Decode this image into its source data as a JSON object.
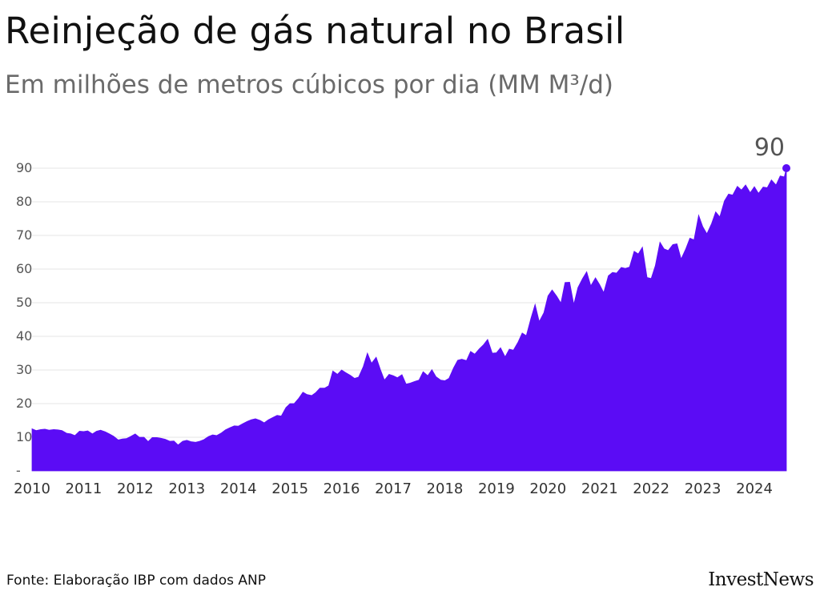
{
  "header": {
    "title": "Reinjeção de gás natural no Brasil",
    "subtitle": "Em milhões de metros cúbicos por dia (MM M³/d)"
  },
  "footer": {
    "source": "Fonte: Elaboração IBP com dados ANP",
    "brand": "InvestNews"
  },
  "colors": {
    "area": "#5b0cf5",
    "grid": "#e6e6e6",
    "text": "#555555"
  },
  "chart_data": {
    "type": "area",
    "title": "Reinjeção de gás natural no Brasil",
    "ylabel": "MM M³/d",
    "ylim": [
      0,
      90
    ],
    "y_ticks": [
      {
        "value": 0,
        "label": "-"
      },
      {
        "value": 10,
        "label": "10"
      },
      {
        "value": 20,
        "label": "20"
      },
      {
        "value": 30,
        "label": "30"
      },
      {
        "value": 40,
        "label": "40"
      },
      {
        "value": 50,
        "label": "50"
      },
      {
        "value": 60,
        "label": "60"
      },
      {
        "value": 70,
        "label": "70"
      },
      {
        "value": 80,
        "label": "80"
      },
      {
        "value": 90,
        "label": "90"
      }
    ],
    "x_ticks": [
      "2010",
      "2011",
      "2012",
      "2013",
      "2014",
      "2015",
      "2016",
      "2017",
      "2018",
      "2019",
      "2020",
      "2021",
      "2022",
      "2023",
      "2024"
    ],
    "x_start": 2010.0,
    "last_label": "90",
    "points": [
      [
        2010.0,
        12.5
      ],
      [
        2010.08,
        12.0
      ],
      [
        2010.17,
        12.3
      ],
      [
        2010.25,
        12.4
      ],
      [
        2010.33,
        12.1
      ],
      [
        2010.42,
        12.3
      ],
      [
        2010.5,
        12.2
      ],
      [
        2010.58,
        12.0
      ],
      [
        2010.67,
        11.2
      ],
      [
        2010.75,
        11.0
      ],
      [
        2010.83,
        10.5
      ],
      [
        2010.92,
        11.8
      ],
      [
        2011.0,
        11.7
      ],
      [
        2011.08,
        11.9
      ],
      [
        2011.17,
        11.0
      ],
      [
        2011.25,
        11.8
      ],
      [
        2011.33,
        12.1
      ],
      [
        2011.42,
        11.6
      ],
      [
        2011.5,
        11.0
      ],
      [
        2011.58,
        10.3
      ],
      [
        2011.67,
        9.2
      ],
      [
        2011.75,
        9.5
      ],
      [
        2011.83,
        9.6
      ],
      [
        2011.92,
        10.3
      ],
      [
        2012.0,
        11.0
      ],
      [
        2012.08,
        10.0
      ],
      [
        2012.17,
        10.0
      ],
      [
        2012.25,
        8.7
      ],
      [
        2012.33,
        9.9
      ],
      [
        2012.42,
        9.9
      ],
      [
        2012.5,
        9.7
      ],
      [
        2012.58,
        9.4
      ],
      [
        2012.67,
        8.8
      ],
      [
        2012.75,
        8.9
      ],
      [
        2012.83,
        7.7
      ],
      [
        2012.92,
        8.8
      ],
      [
        2013.0,
        9.1
      ],
      [
        2013.08,
        8.7
      ],
      [
        2013.17,
        8.5
      ],
      [
        2013.25,
        8.8
      ],
      [
        2013.33,
        9.3
      ],
      [
        2013.42,
        10.2
      ],
      [
        2013.5,
        10.7
      ],
      [
        2013.58,
        10.5
      ],
      [
        2013.67,
        11.3
      ],
      [
        2013.75,
        12.2
      ],
      [
        2013.83,
        12.8
      ],
      [
        2013.92,
        13.4
      ],
      [
        2014.0,
        13.3
      ],
      [
        2014.08,
        14.0
      ],
      [
        2014.17,
        14.7
      ],
      [
        2014.25,
        15.2
      ],
      [
        2014.33,
        15.5
      ],
      [
        2014.42,
        15.0
      ],
      [
        2014.5,
        14.3
      ],
      [
        2014.58,
        15.2
      ],
      [
        2014.67,
        15.9
      ],
      [
        2014.75,
        16.5
      ],
      [
        2014.83,
        16.3
      ],
      [
        2014.92,
        18.8
      ],
      [
        2015.0,
        20.0
      ],
      [
        2015.08,
        20.0
      ],
      [
        2015.17,
        21.6
      ],
      [
        2015.25,
        23.4
      ],
      [
        2015.33,
        22.7
      ],
      [
        2015.42,
        22.4
      ],
      [
        2015.5,
        23.3
      ],
      [
        2015.58,
        24.6
      ],
      [
        2015.67,
        24.6
      ],
      [
        2015.75,
        25.3
      ],
      [
        2015.83,
        29.7
      ],
      [
        2015.92,
        28.7
      ],
      [
        2016.0,
        30.0
      ],
      [
        2016.08,
        29.2
      ],
      [
        2016.17,
        28.4
      ],
      [
        2016.25,
        27.5
      ],
      [
        2016.33,
        27.9
      ],
      [
        2016.42,
        31.0
      ],
      [
        2016.5,
        35.0
      ],
      [
        2016.58,
        32.0
      ],
      [
        2016.67,
        33.8
      ],
      [
        2016.75,
        30.2
      ],
      [
        2016.83,
        27.0
      ],
      [
        2016.92,
        28.7
      ],
      [
        2017.0,
        28.3
      ],
      [
        2017.08,
        27.7
      ],
      [
        2017.17,
        28.6
      ],
      [
        2017.25,
        25.8
      ],
      [
        2017.33,
        26.1
      ],
      [
        2017.42,
        26.6
      ],
      [
        2017.5,
        27.0
      ],
      [
        2017.58,
        29.5
      ],
      [
        2017.67,
        28.3
      ],
      [
        2017.75,
        30.1
      ],
      [
        2017.83,
        28.0
      ],
      [
        2017.92,
        27.0
      ],
      [
        2018.0,
        26.8
      ],
      [
        2018.08,
        27.5
      ],
      [
        2018.17,
        30.6
      ],
      [
        2018.25,
        32.9
      ],
      [
        2018.33,
        33.2
      ],
      [
        2018.42,
        32.8
      ],
      [
        2018.5,
        35.5
      ],
      [
        2018.58,
        34.7
      ],
      [
        2018.67,
        36.3
      ],
      [
        2018.75,
        37.5
      ],
      [
        2018.83,
        39.1
      ],
      [
        2018.92,
        35.0
      ],
      [
        2019.0,
        35.1
      ],
      [
        2019.08,
        36.6
      ],
      [
        2019.17,
        33.9
      ],
      [
        2019.25,
        36.2
      ],
      [
        2019.33,
        35.9
      ],
      [
        2019.42,
        38.3
      ],
      [
        2019.5,
        41.0
      ],
      [
        2019.58,
        40.2
      ],
      [
        2019.67,
        45.4
      ],
      [
        2019.75,
        49.5
      ],
      [
        2019.83,
        44.4
      ],
      [
        2019.92,
        47.0
      ],
      [
        2020.0,
        52.0
      ],
      [
        2020.08,
        53.8
      ],
      [
        2020.17,
        51.9
      ],
      [
        2020.25,
        49.9
      ],
      [
        2020.33,
        56.0
      ],
      [
        2020.42,
        56.1
      ],
      [
        2020.5,
        49.5
      ],
      [
        2020.58,
        54.5
      ],
      [
        2020.67,
        57.2
      ],
      [
        2020.75,
        59.2
      ],
      [
        2020.83,
        55.0
      ],
      [
        2020.92,
        57.4
      ],
      [
        2021.0,
        55.4
      ],
      [
        2021.08,
        53.0
      ],
      [
        2021.17,
        58.0
      ],
      [
        2021.25,
        59.0
      ],
      [
        2021.33,
        58.8
      ],
      [
        2021.42,
        60.5
      ],
      [
        2021.5,
        60.2
      ],
      [
        2021.58,
        60.6
      ],
      [
        2021.67,
        65.3
      ],
      [
        2021.75,
        64.5
      ],
      [
        2021.83,
        66.5
      ],
      [
        2021.92,
        57.5
      ],
      [
        2022.0,
        57.2
      ],
      [
        2022.08,
        61.0
      ],
      [
        2022.17,
        68.0
      ],
      [
        2022.25,
        66.0
      ],
      [
        2022.33,
        65.5
      ],
      [
        2022.42,
        67.3
      ],
      [
        2022.5,
        67.5
      ],
      [
        2022.58,
        63.0
      ],
      [
        2022.67,
        66.0
      ],
      [
        2022.75,
        69.2
      ],
      [
        2022.83,
        68.7
      ],
      [
        2022.92,
        76.0
      ],
      [
        2023.0,
        72.6
      ],
      [
        2023.08,
        70.5
      ],
      [
        2023.17,
        73.5
      ],
      [
        2023.25,
        77.0
      ],
      [
        2023.33,
        75.5
      ],
      [
        2023.42,
        80.3
      ],
      [
        2023.5,
        82.3
      ],
      [
        2023.58,
        82.0
      ],
      [
        2023.67,
        84.6
      ],
      [
        2023.75,
        83.5
      ],
      [
        2023.83,
        85.0
      ],
      [
        2023.92,
        82.7
      ],
      [
        2024.0,
        84.5
      ],
      [
        2024.08,
        82.5
      ],
      [
        2024.17,
        84.4
      ],
      [
        2024.25,
        84.2
      ],
      [
        2024.33,
        86.5
      ],
      [
        2024.42,
        85.0
      ],
      [
        2024.5,
        87.7
      ],
      [
        2024.58,
        87.4
      ],
      [
        2024.62,
        90.0
      ]
    ]
  }
}
